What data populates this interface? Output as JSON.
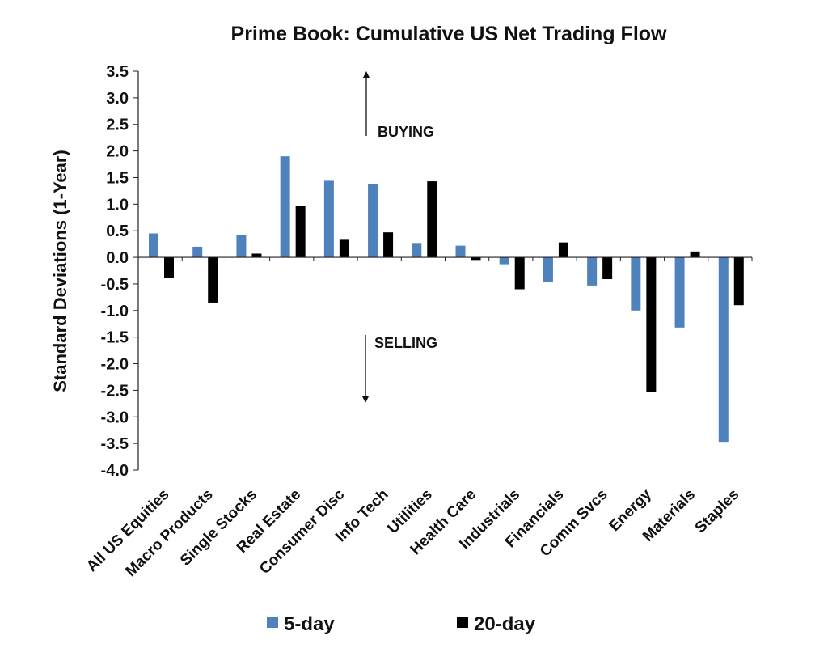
{
  "chart_data": {
    "type": "bar",
    "title": "Prime Book: Cumulative US Net Trading Flow",
    "ylabel": "Standard Deviations (1-Year)",
    "xlabel": "",
    "ylim": [
      -4.0,
      3.5
    ],
    "yticks": [
      3.5,
      3.0,
      2.5,
      2.0,
      1.5,
      1.0,
      0.5,
      0.0,
      -0.5,
      -1.0,
      -1.5,
      -2.0,
      -2.5,
      -3.0,
      -3.5,
      -4.0
    ],
    "ytick_labels": [
      "3.5",
      "3.0",
      "2.5",
      "2.0",
      "1.5",
      "1.0",
      "0.5",
      "0.0",
      "-0.5",
      "-1.0",
      "-1.5",
      "-2.0",
      "-2.5",
      "-3.0",
      "-3.5",
      "-4.0"
    ],
    "categories": [
      "All US Equities",
      "Macro Products",
      "Single Stocks",
      "Real Estate",
      "Consumer Disc",
      "Info Tech",
      "Utilities",
      "Health Care",
      "Industrials",
      "Financials",
      "Comm Svcs",
      "Energy",
      "Materials",
      "Staples"
    ],
    "series": [
      {
        "name": "5-day",
        "color": "#4f81bd",
        "values": [
          0.45,
          0.2,
          0.42,
          1.9,
          1.44,
          1.37,
          0.27,
          0.22,
          -0.13,
          -0.46,
          -0.53,
          -1.0,
          -1.32,
          -3.47
        ]
      },
      {
        "name": "20-day",
        "color": "#000000",
        "values": [
          -0.39,
          -0.85,
          0.07,
          0.96,
          0.33,
          0.47,
          1.43,
          -0.05,
          -0.6,
          0.28,
          -0.41,
          -2.53,
          0.11,
          -0.9
        ]
      }
    ],
    "annotations": [
      {
        "text": "BUYING",
        "arrow": "up"
      },
      {
        "text": "SELLING",
        "arrow": "down"
      }
    ],
    "grid": false,
    "legend": "bottom"
  }
}
